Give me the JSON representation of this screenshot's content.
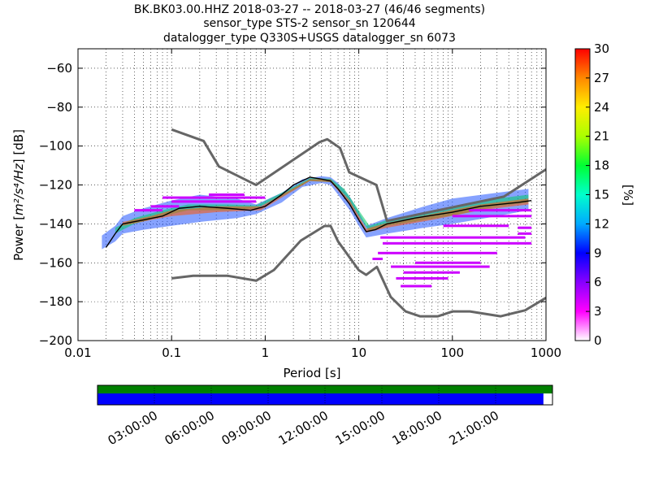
{
  "title_lines": [
    "BK.BK03.00.HHZ   2018-03-27 -- 2018-03-27  (46/46 segments)",
    "sensor_type STS-2 sensor_sn 120644",
    "datalogger_type Q330S+USGS datalogger_sn 6073"
  ],
  "chart_data": {
    "type": "heatmap",
    "xlabel": "Period [s]",
    "ylabel_prefix": "Power [",
    "ylabel_units": "m²/s⁴/Hz",
    "ylabel_suffix": "] [dB]",
    "x_scale": "log",
    "xlim": [
      0.01,
      1000
    ],
    "ylim": [
      -200,
      -50
    ],
    "x_ticks": [
      {
        "value": 0.01,
        "label": "0.01"
      },
      {
        "value": 0.1,
        "label": "0.1"
      },
      {
        "value": 1,
        "label": "1"
      },
      {
        "value": 10,
        "label": "10"
      },
      {
        "value": 100,
        "label": "100"
      },
      {
        "value": 1000,
        "label": "1000"
      }
    ],
    "y_ticks": [
      -60,
      -80,
      -100,
      -120,
      -140,
      -160,
      -180,
      -200
    ],
    "grid": true,
    "colorbar": {
      "label": "[%]",
      "min": 0,
      "max": 30,
      "ticks": [
        0,
        3,
        6,
        9,
        12,
        15,
        18,
        21,
        24,
        27,
        30
      ],
      "colors": [
        "#ffffff",
        "#ff00ff",
        "#8800ff",
        "#0000ff",
        "#00aaff",
        "#00ffcc",
        "#00ff33",
        "#aaff00",
        "#ffee00",
        "#ff8800",
        "#ff0000"
      ]
    },
    "nhnm": {
      "name": "NHNM",
      "color": "#666666",
      "points": [
        [
          0.1,
          -91.5
        ],
        [
          0.22,
          -97.4
        ],
        [
          0.32,
          -110.5
        ],
        [
          0.8,
          -120
        ],
        [
          3.8,
          -98
        ],
        [
          4.6,
          -96.5
        ],
        [
          6.3,
          -101
        ],
        [
          7.9,
          -113.5
        ],
        [
          15.4,
          -120
        ],
        [
          20,
          -138.5
        ],
        [
          354.8,
          -126
        ],
        [
          1000,
          -112
        ]
      ]
    },
    "nlnm": {
      "name": "NLNM",
      "color": "#666666",
      "points": [
        [
          0.1,
          -168
        ],
        [
          0.17,
          -166.7
        ],
        [
          0.4,
          -166.7
        ],
        [
          0.8,
          -169.2
        ],
        [
          1.24,
          -163.7
        ],
        [
          2.4,
          -148.6
        ],
        [
          4.3,
          -141.1
        ],
        [
          5,
          -141.1
        ],
        [
          6,
          -149
        ],
        [
          10,
          -163.8
        ],
        [
          12,
          -166.2
        ],
        [
          15.6,
          -162.1
        ],
        [
          21.9,
          -177.5
        ],
        [
          31.6,
          -185
        ],
        [
          45,
          -187.5
        ],
        [
          70,
          -187.5
        ],
        [
          101,
          -185
        ],
        [
          154,
          -185
        ],
        [
          328,
          -187.5
        ],
        [
          600,
          -184.4
        ],
        [
          1000,
          -178
        ]
      ]
    },
    "mode": {
      "name": "mode",
      "color": "#000000",
      "points": [
        [
          0.02,
          -152
        ],
        [
          0.025,
          -145
        ],
        [
          0.03,
          -140
        ],
        [
          0.05,
          -138
        ],
        [
          0.08,
          -136
        ],
        [
          0.12,
          -132
        ],
        [
          0.2,
          -131
        ],
        [
          0.4,
          -132
        ],
        [
          0.7,
          -133
        ],
        [
          1,
          -131
        ],
        [
          1.5,
          -125
        ],
        [
          2,
          -120
        ],
        [
          3,
          -116
        ],
        [
          4,
          -117
        ],
        [
          5,
          -118
        ],
        [
          6,
          -122
        ],
        [
          8,
          -130
        ],
        [
          10,
          -138
        ],
        [
          12,
          -144
        ],
        [
          15,
          -143
        ],
        [
          20,
          -140
        ],
        [
          40,
          -137
        ],
        [
          100,
          -134
        ],
        [
          200,
          -131
        ],
        [
          500,
          -129
        ],
        [
          700,
          -128
        ]
      ]
    },
    "bands": [
      {
        "lo": [
          [
            0.018,
            -153
          ],
          [
            0.025,
            -149
          ],
          [
            0.03,
            -145
          ],
          [
            0.05,
            -143
          ],
          [
            0.1,
            -141
          ],
          [
            0.2,
            -139
          ],
          [
            0.5,
            -137
          ],
          [
            0.8,
            -135
          ],
          [
            1.5,
            -129
          ],
          [
            2.5,
            -121
          ],
          [
            4,
            -119
          ],
          [
            5,
            -120
          ],
          [
            6,
            -125
          ],
          [
            8,
            -133
          ],
          [
            10,
            -141
          ],
          [
            12,
            -147
          ],
          [
            20,
            -145
          ],
          [
            50,
            -142
          ],
          [
            100,
            -140
          ],
          [
            300,
            -136
          ],
          [
            650,
            -133
          ]
        ],
        "hi": [
          [
            0.018,
            -146
          ],
          [
            0.025,
            -141
          ],
          [
            0.03,
            -136
          ],
          [
            0.05,
            -132
          ],
          [
            0.1,
            -128
          ],
          [
            0.2,
            -125
          ],
          [
            0.5,
            -127
          ],
          [
            0.8,
            -130
          ],
          [
            1.5,
            -124
          ],
          [
            2.5,
            -117
          ],
          [
            4,
            -115.5
          ],
          [
            5,
            -116
          ],
          [
            6,
            -119
          ],
          [
            8,
            -126
          ],
          [
            10,
            -134
          ],
          [
            12,
            -141
          ],
          [
            20,
            -137
          ],
          [
            50,
            -131
          ],
          [
            100,
            -127
          ],
          [
            300,
            -124
          ],
          [
            650,
            -122
          ]
        ],
        "color": "#2255ff"
      },
      {
        "lo": [
          [
            0.025,
            -145
          ],
          [
            0.04,
            -140
          ],
          [
            0.08,
            -136
          ],
          [
            0.15,
            -133
          ],
          [
            0.4,
            -133
          ],
          [
            0.8,
            -132
          ],
          [
            1.5,
            -126
          ],
          [
            3,
            -118
          ],
          [
            5,
            -118.5
          ],
          [
            7,
            -125
          ],
          [
            10,
            -136
          ],
          [
            13,
            -144
          ],
          [
            20,
            -141
          ],
          [
            50,
            -138
          ],
          [
            120,
            -135
          ],
          [
            300,
            -131
          ],
          [
            650,
            -129
          ]
        ],
        "hi": [
          [
            0.025,
            -142
          ],
          [
            0.04,
            -137
          ],
          [
            0.08,
            -133
          ],
          [
            0.15,
            -130
          ],
          [
            0.4,
            -130
          ],
          [
            0.8,
            -130.5
          ],
          [
            1.5,
            -124
          ],
          [
            3,
            -116.5
          ],
          [
            5,
            -116.8
          ],
          [
            7,
            -122
          ],
          [
            10,
            -133
          ],
          [
            13,
            -141
          ],
          [
            20,
            -138
          ],
          [
            50,
            -134
          ],
          [
            120,
            -131
          ],
          [
            300,
            -127
          ],
          [
            650,
            -125
          ]
        ],
        "color": "#00cc66"
      },
      {
        "lo": [
          [
            0.03,
            -141
          ],
          [
            0.06,
            -138
          ],
          [
            0.1,
            -136
          ],
          [
            0.3,
            -134
          ],
          [
            0.9,
            -133
          ],
          [
            1.5,
            -126.5
          ],
          [
            3,
            -118
          ],
          [
            5,
            -118.5
          ],
          [
            8,
            -130
          ],
          [
            12,
            -144.5
          ],
          [
            20,
            -142
          ],
          [
            60,
            -138
          ],
          [
            200,
            -133
          ],
          [
            650,
            -130
          ]
        ],
        "hi": [
          [
            0.03,
            -139
          ],
          [
            0.06,
            -136
          ],
          [
            0.1,
            -133
          ],
          [
            0.3,
            -131
          ],
          [
            0.9,
            -131
          ],
          [
            1.5,
            -125
          ],
          [
            3,
            -117
          ],
          [
            5,
            -117.2
          ],
          [
            8,
            -128
          ],
          [
            12,
            -142.5
          ],
          [
            20,
            -139.5
          ],
          [
            60,
            -135
          ],
          [
            200,
            -130
          ],
          [
            650,
            -127
          ]
        ],
        "color": "#ff5500"
      }
    ],
    "outliers": [
      {
        "x": [
          0.08,
          1.0
        ],
        "y": -126.5
      },
      {
        "x": [
          0.1,
          0.8
        ],
        "y": -128.5
      },
      {
        "x": [
          0.25,
          0.6
        ],
        "y": -125
      },
      {
        "x": [
          0.06,
          0.12
        ],
        "y": -131
      },
      {
        "x": [
          0.04,
          0.08
        ],
        "y": -133
      },
      {
        "x": [
          18,
          700
        ],
        "y": -150
      },
      {
        "x": [
          16,
          300
        ],
        "y": -155
      },
      {
        "x": [
          17,
          600
        ],
        "y": -147
      },
      {
        "x": [
          22,
          250
        ],
        "y": -162
      },
      {
        "x": [
          30,
          120
        ],
        "y": -165
      },
      {
        "x": [
          25,
          90
        ],
        "y": -168
      },
      {
        "x": [
          28,
          60
        ],
        "y": -172
      },
      {
        "x": [
          40,
          200
        ],
        "y": -160
      },
      {
        "x": [
          100,
          700
        ],
        "y": -136
      },
      {
        "x": [
          150,
          700
        ],
        "y": -133
      },
      {
        "x": [
          500,
          700
        ],
        "y": -142
      },
      {
        "x": [
          500,
          700
        ],
        "y": -145
      },
      {
        "x": [
          80,
          400
        ],
        "y": -141
      },
      {
        "x": [
          14,
          18
        ],
        "y": -158
      }
    ]
  },
  "timeline": {
    "coverage_top_color": "#008000",
    "coverage_main_color": "#0000ff",
    "coverage_fraction": 0.98,
    "tick_labels": [
      "03:00:00",
      "06:00:00",
      "09:00:00",
      "12:00:00",
      "15:00:00",
      "18:00:00",
      "21:00:00"
    ]
  }
}
